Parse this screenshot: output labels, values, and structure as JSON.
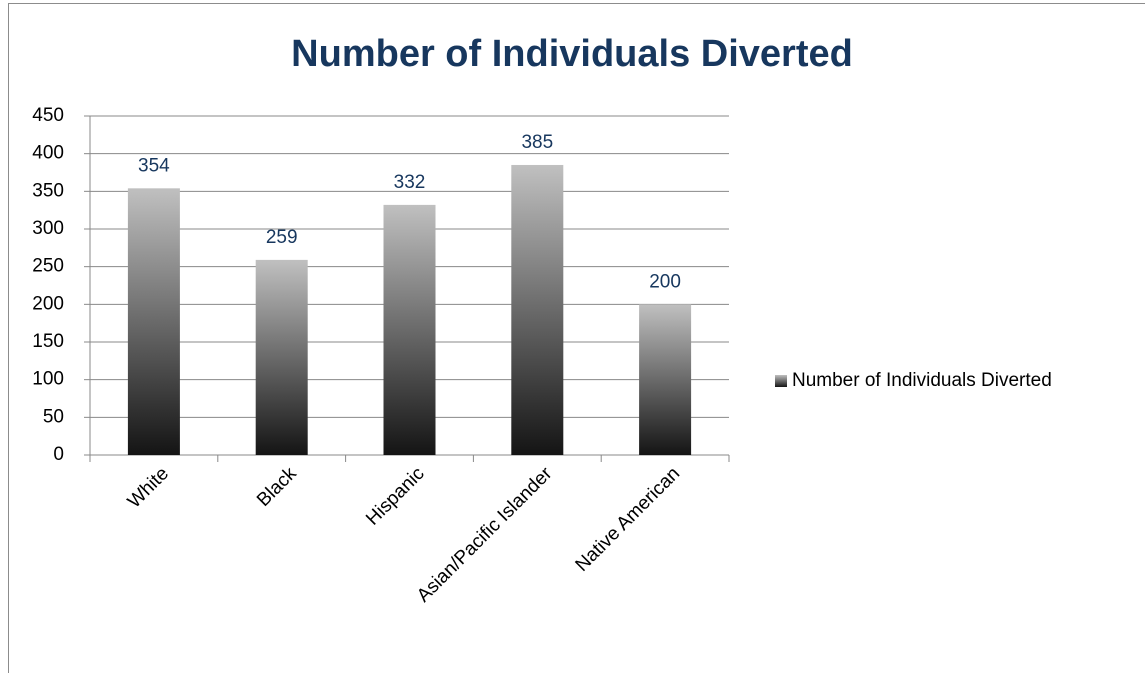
{
  "chart_data": {
    "type": "bar",
    "title": "Number of Individuals Diverted",
    "categories": [
      "White",
      "Black",
      "Hispanic",
      "Asian/Pacific Islander",
      "Native American"
    ],
    "series": [
      {
        "name": "Number of Individuals Diverted",
        "gradient": [
          "#c0c0c0",
          "#141414"
        ],
        "values": [
          354,
          259,
          332,
          385,
          200
        ]
      }
    ],
    "ylim": [
      0,
      450
    ],
    "yticks": [
      0,
      50,
      100,
      150,
      200,
      250,
      300,
      350,
      400,
      450
    ],
    "grid": true,
    "legend": "right",
    "data_labels": true
  }
}
